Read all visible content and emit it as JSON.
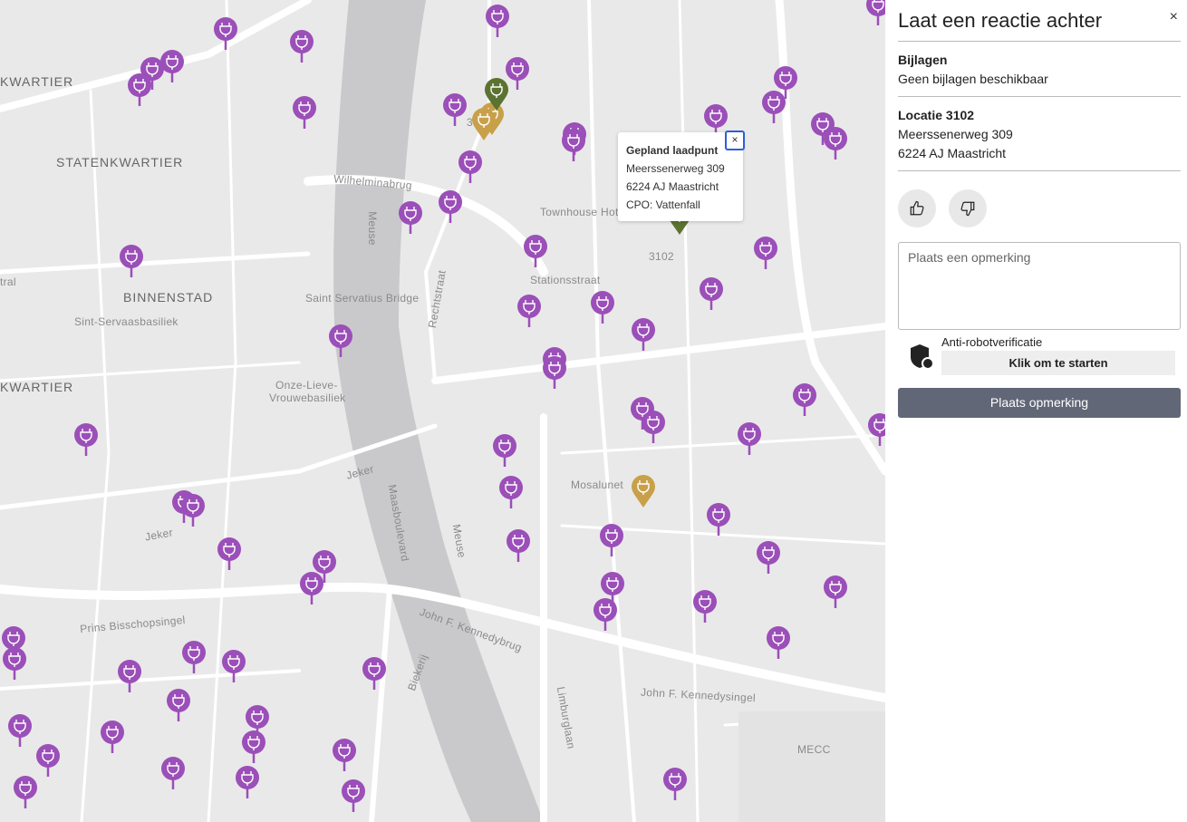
{
  "map": {
    "labels": {
      "kwartier_top": "KWARTIER",
      "statenkwartier": "STATENKWARTIER",
      "binnenstad": "BINNENSTAD",
      "kwartier_mid": "KWARTIER",
      "wilhelminabrug": "Wilhelminabrug",
      "meuse_top": "Meuse",
      "townhouse": "Townhouse Hotel",
      "stationsstraat": "Stationsstraat",
      "rechtstraat": "Rechtstraat",
      "servatius_bridge": "Saint Servatius Bridge",
      "servaasbasiliek": "Sint-Servaasbasiliek",
      "vrouwebasiliek_1": "Onze-Lieve-",
      "vrouwebasiliek_2": "Vrouwebasiliek",
      "jeker_1": "Jeker",
      "jeker_2": "Jeker",
      "maasboulevard": "Maasboulevard",
      "meuse_bottom": "Meuse",
      "mosalunet": "Mosalunet",
      "prins": "Prins Bisschopsingel",
      "jfk_brug": "John F. Kennedybrug",
      "jfk_singel": "John F. Kennedysingel",
      "limburglaan": "Limburglaan",
      "biekerij": "Biekerij",
      "mecc": "MECC",
      "loc_3102": "3102",
      "loc_3800": "3800",
      "tral": "tral"
    },
    "colors": {
      "existing": "#9b4fb8",
      "planned": "#5b7330",
      "other": "#c9a04a"
    },
    "popup": {
      "title": "Gepland laadpunt",
      "street": "Meerssenerweg 309",
      "city": "6224 AJ  Maastricht",
      "cpo": "CPO: Vattenfall",
      "close": "×"
    }
  },
  "panel": {
    "title": "Laat een reactie achter",
    "close": "×",
    "attachments_heading": "Bijlagen",
    "attachments_text": "Geen bijlagen beschikbaar",
    "location_heading": "Locatie 3102",
    "location_street": "Meerssenerweg 309",
    "location_city": "6224 AJ  Maastricht",
    "comment_placeholder": "Plaats een opmerking",
    "captcha_label": "Anti-robotverificatie",
    "captcha_button": "Klik om te starten",
    "submit": "Plaats opmerking"
  }
}
